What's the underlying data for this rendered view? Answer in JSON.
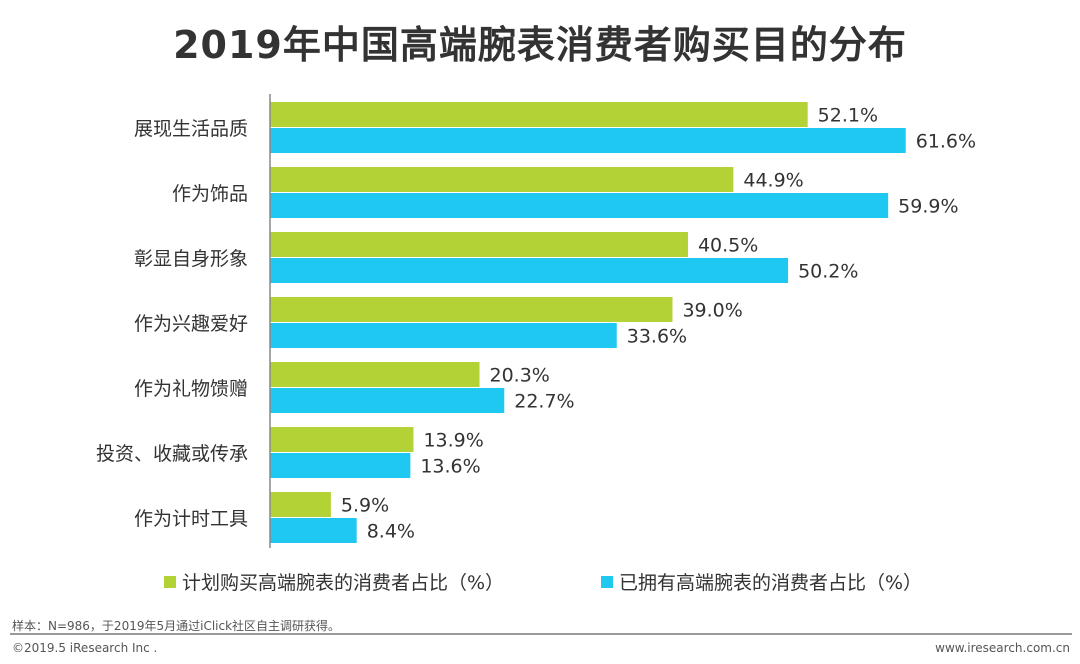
{
  "chart_data": {
    "type": "bar",
    "orientation": "horizontal",
    "title": "2019年中国高端腕表消费者购买目的分布",
    "categories": [
      "展现生活品质",
      "作为饰品",
      "彰显自身形象",
      "作为兴趣爱好",
      "作为礼物馈赠",
      "投资、收藏或传承",
      "作为计时工具"
    ],
    "series": [
      {
        "name": "计划购买高端腕表的消费者占比（%）",
        "color": "#b2d235",
        "values": [
          52.1,
          44.9,
          40.5,
          39.0,
          20.3,
          13.9,
          5.9
        ]
      },
      {
        "name": "已拥有高端腕表的消费者占比（%）",
        "color": "#1ec8f0",
        "values": [
          61.6,
          59.9,
          50.2,
          33.6,
          22.7,
          13.6,
          8.4
        ]
      }
    ],
    "value_suffix": "%",
    "xlim": [
      0,
      70
    ],
    "grid": false,
    "legend_position": "bottom"
  },
  "footer": {
    "note": "样本：N=986，于2019年5月通过iClick社区自主调研获得。",
    "copyright": "©2019.5 iResearch Inc .",
    "website": "www.iresearch.com.cn"
  }
}
